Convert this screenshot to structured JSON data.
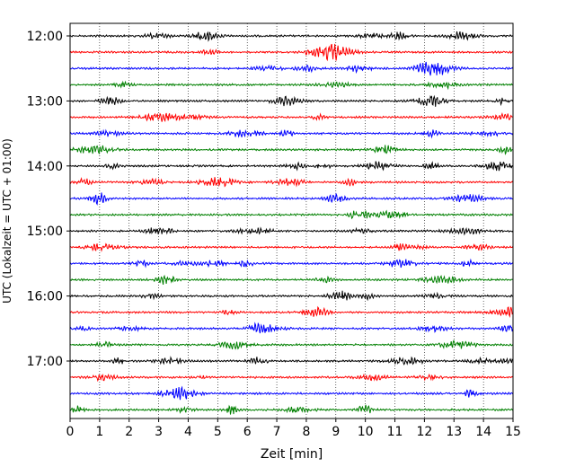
{
  "chart_data": {
    "type": "line",
    "title": "",
    "xlabel": "Zeit  [min]",
    "ylabel": "UTC (Lokalzeit = UTC + 01:00)",
    "xlim": [
      0,
      15
    ],
    "x_ticks": [
      0,
      1,
      2,
      3,
      4,
      5,
      6,
      7,
      8,
      9,
      10,
      11,
      12,
      13,
      14,
      15
    ],
    "x_tick_labels": [
      "0",
      "1",
      "2",
      "3",
      "4",
      "5",
      "6",
      "7",
      "8",
      "9",
      "10",
      "11",
      "12",
      "13",
      "14",
      "15"
    ],
    "y_tick_labels": [
      "12:00",
      "13:00",
      "14:00",
      "15:00",
      "16:00",
      "17:00"
    ],
    "grid": "vertical dotted",
    "trace_colors": [
      "#000000",
      "#ff0000",
      "#0000ff",
      "#008000"
    ],
    "series": [
      {
        "start": "12:00",
        "color": "#000000"
      },
      {
        "start": "12:15",
        "color": "#ff0000"
      },
      {
        "start": "12:30",
        "color": "#0000ff"
      },
      {
        "start": "12:45",
        "color": "#008000"
      },
      {
        "start": "13:00",
        "color": "#000000"
      },
      {
        "start": "13:15",
        "color": "#ff0000"
      },
      {
        "start": "13:30",
        "color": "#0000ff"
      },
      {
        "start": "13:45",
        "color": "#008000"
      },
      {
        "start": "14:00",
        "color": "#000000"
      },
      {
        "start": "14:15",
        "color": "#ff0000"
      },
      {
        "start": "14:30",
        "color": "#0000ff"
      },
      {
        "start": "14:45",
        "color": "#008000"
      },
      {
        "start": "15:00",
        "color": "#000000"
      },
      {
        "start": "15:15",
        "color": "#ff0000"
      },
      {
        "start": "15:30",
        "color": "#0000ff"
      },
      {
        "start": "15:45",
        "color": "#008000"
      },
      {
        "start": "16:00",
        "color": "#000000"
      },
      {
        "start": "16:15",
        "color": "#ff0000"
      },
      {
        "start": "16:30",
        "color": "#0000ff"
      },
      {
        "start": "16:45",
        "color": "#008000"
      },
      {
        "start": "17:00",
        "color": "#000000"
      },
      {
        "start": "17:15",
        "color": "#ff0000"
      },
      {
        "start": "17:30",
        "color": "#0000ff"
      },
      {
        "start": "17:45",
        "color": "#008000"
      }
    ]
  }
}
